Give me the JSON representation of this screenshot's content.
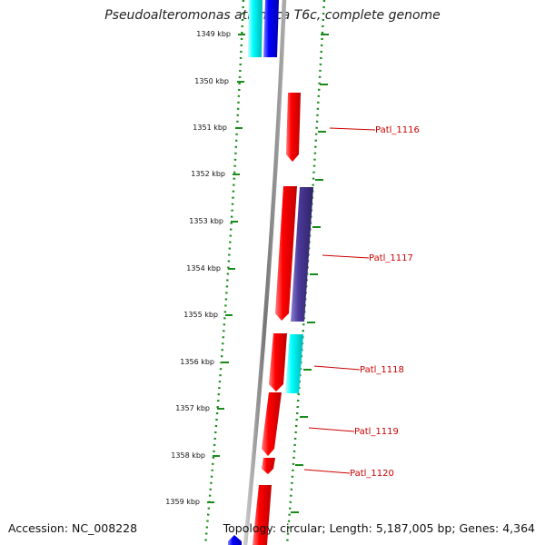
{
  "title": "Pseudoalteromonas atlantica T6c, complete genome",
  "accession_text": "Accession: NC_008228",
  "summary_text": "Topology: circular; Length: 5,187,005 bp; Genes: 4,364",
  "colors": {
    "backbone": "#888888",
    "ruler": "#1a8a1a",
    "label": "#cc0000",
    "forward_gene": "#ff0000",
    "reverse_gene": "#0000ff",
    "cyan_gene": "#00e5e5",
    "purple_gene": "#4b3a9a"
  },
  "ruler_ticks": [
    "1349 kbp",
    "1350 kbp",
    "1351 kbp",
    "1352 kbp",
    "1353 kbp",
    "1354 kbp",
    "1355 kbp",
    "1356 kbp",
    "1357 kbp",
    "1358 kbp",
    "1359 kbp"
  ],
  "gene_labels": [
    "Patl_1116",
    "Patl_1117",
    "Patl_1118",
    "Patl_1119",
    "Patl_1120"
  ]
}
